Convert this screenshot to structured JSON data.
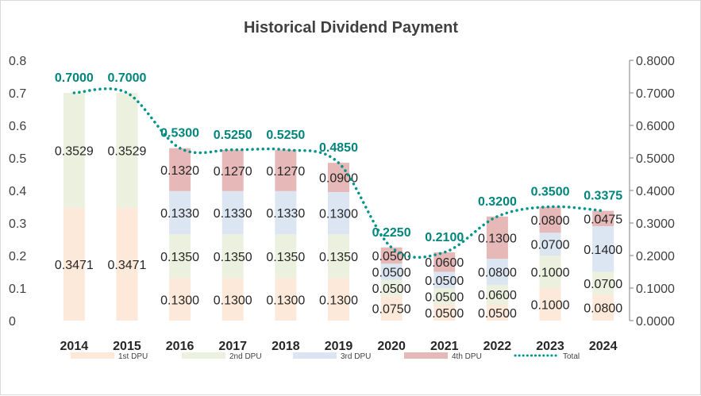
{
  "chart_data": {
    "type": "bar",
    "title": "Historical Dividend Payment",
    "categories": [
      "2014",
      "2015",
      "2016",
      "2017",
      "2018",
      "2019",
      "2020",
      "2021",
      "2022",
      "2023",
      "2024"
    ],
    "series": [
      {
        "name": "1st DPU",
        "color": "#fde9d9",
        "values": [
          0.3471,
          0.3471,
          0.13,
          0.13,
          0.13,
          0.13,
          0.075,
          0.05,
          0.05,
          0.1,
          0.08
        ]
      },
      {
        "name": "2nd DPU",
        "color": "#ebf1de",
        "values": [
          0.3529,
          0.3529,
          0.135,
          0.135,
          0.135,
          0.135,
          0.05,
          0.05,
          0.06,
          0.1,
          0.07
        ]
      },
      {
        "name": "3rd DPU",
        "color": "#dce6f2",
        "values": [
          null,
          null,
          0.133,
          0.133,
          0.133,
          0.13,
          0.05,
          0.05,
          0.08,
          0.07,
          0.14
        ]
      },
      {
        "name": "4th DPU",
        "color": "#e6b9b8",
        "values": [
          null,
          null,
          0.132,
          0.127,
          0.127,
          0.09,
          0.05,
          0.06,
          0.13,
          0.08,
          0.0475
        ]
      }
    ],
    "labels": [
      [
        "0.3471",
        "0.3471",
        "0.1300",
        "0.1300",
        "0.1300",
        "0.1300",
        "0.0750",
        "0.0500",
        "0.0500",
        "0.1000",
        "0.0800"
      ],
      [
        "0.3529",
        "0.3529",
        "0.1350",
        "0.1350",
        "0.1350",
        "0.1350",
        "0.0500",
        "0.0500",
        "0.0600",
        "0.1000",
        "0.0700"
      ],
      [
        "",
        "",
        "0.1330",
        "0.1330",
        "0.1330",
        "0.1300",
        "0.0500",
        "0.0500",
        "0.0800",
        "0.0700",
        "0.1400"
      ],
      [
        "",
        "",
        "0.1320",
        "0.1270",
        "0.1270",
        "0.0900",
        "0.0500",
        "0.0600",
        "0.1300",
        "0.0800",
        "0.0475"
      ]
    ],
    "total": {
      "name": "Total",
      "color": "#00958c",
      "values": [
        0.7,
        0.7,
        0.53,
        0.525,
        0.525,
        0.485,
        0.225,
        0.21,
        0.32,
        0.35,
        0.3375
      ],
      "labels": [
        "0.7000",
        "0.7000",
        "0.5300",
        "0.5250",
        "0.5250",
        "0.4850",
        "0.2250",
        "0.2100",
        "0.3200",
        "0.3500",
        "0.3375"
      ]
    },
    "y_left": {
      "ylim": [
        0,
        0.8
      ],
      "ticks": [
        "0",
        "0.1",
        "0.2",
        "0.3",
        "0.4",
        "0.5",
        "0.6",
        "0.7",
        "0.8"
      ]
    },
    "y_right": {
      "ylim": [
        0,
        0.8
      ],
      "ticks": [
        "0.0000",
        "0.1000",
        "0.2000",
        "0.3000",
        "0.4000",
        "0.5000",
        "0.6000",
        "0.7000",
        "0.8000"
      ]
    },
    "legend_position": "bottom",
    "grid": false
  }
}
